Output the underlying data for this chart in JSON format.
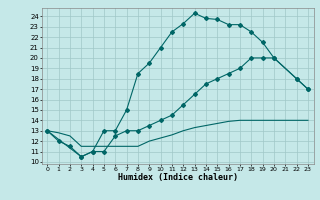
{
  "title": "",
  "xlabel": "Humidex (Indice chaleur)",
  "bg_color": "#c5e8e8",
  "grid_color": "#a0c8c8",
  "line_color": "#006666",
  "ylim": [
    9.8,
    24.8
  ],
  "xlim": [
    -0.5,
    23.5
  ],
  "yticks": [
    10,
    11,
    12,
    13,
    14,
    15,
    16,
    17,
    18,
    19,
    20,
    21,
    22,
    23,
    24
  ],
  "xticks": [
    0,
    1,
    2,
    3,
    4,
    5,
    6,
    7,
    8,
    9,
    10,
    11,
    12,
    13,
    14,
    15,
    16,
    17,
    18,
    19,
    20,
    21,
    22,
    23
  ],
  "line1_x": [
    0,
    1,
    2,
    3,
    4,
    5,
    6,
    7,
    8,
    9,
    10,
    11,
    12,
    13,
    14,
    15,
    16,
    17,
    18,
    19,
    20,
    22,
    23
  ],
  "line1_y": [
    13,
    12,
    11.5,
    10.5,
    11,
    13,
    13,
    15,
    18.5,
    19.5,
    21,
    22.5,
    23.3,
    24.3,
    23.8,
    23.7,
    23.2,
    23.2,
    22.5,
    21.5,
    20,
    18,
    17
  ],
  "line2_x": [
    0,
    1,
    2,
    3,
    4,
    5,
    6,
    7,
    8,
    9,
    10,
    11,
    12,
    13,
    14,
    15,
    16,
    17,
    18,
    19,
    20,
    21,
    22,
    23
  ],
  "line2_y": [
    13,
    12.8,
    12.5,
    11.5,
    11.5,
    11.5,
    11.5,
    11.5,
    11.5,
    12,
    12.3,
    12.6,
    13,
    13.3,
    13.5,
    13.7,
    13.9,
    14,
    14,
    14,
    14,
    14,
    14,
    14
  ],
  "line3_x": [
    0,
    3,
    4,
    5,
    6,
    7,
    8,
    9,
    10,
    11,
    12,
    13,
    14,
    15,
    16,
    17,
    18,
    19,
    20,
    22,
    23
  ],
  "line3_y": [
    13,
    10.5,
    11,
    11,
    12.5,
    13,
    13,
    13.5,
    14,
    14.5,
    15.5,
    16.5,
    17.5,
    18,
    18.5,
    19,
    20,
    20,
    20,
    18,
    17
  ]
}
